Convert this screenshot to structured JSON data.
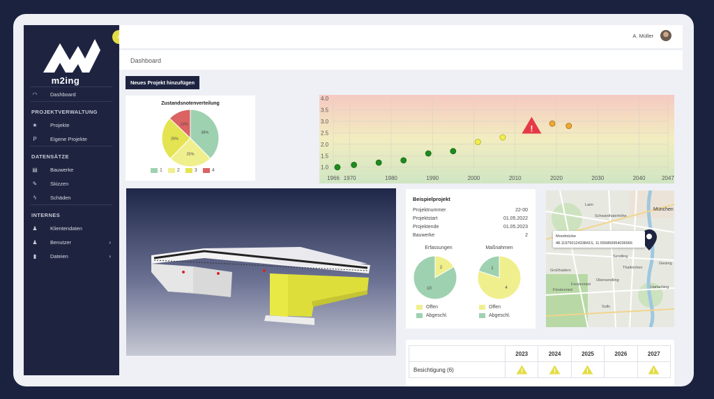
{
  "brand": {
    "name": "m2ing"
  },
  "sidebar": {
    "dashboard": {
      "label": "Dashboard",
      "icon": "dashboard-icon"
    },
    "sections": [
      {
        "title": "PROJEKTVERWALTUNG",
        "items": [
          {
            "label": "Projekte",
            "icon": "star-icon"
          },
          {
            "label": "Eigene Projekte",
            "icon": "p-icon"
          }
        ]
      },
      {
        "title": "DATENSÄTZE",
        "items": [
          {
            "label": "Bauwerke",
            "icon": "building-icon"
          },
          {
            "label": "Skizzen",
            "icon": "edit-icon"
          },
          {
            "label": "Schäden",
            "icon": "bolt-icon"
          }
        ]
      },
      {
        "title": "INTERNES",
        "items": [
          {
            "label": "Klientendaten",
            "icon": "person-icon"
          },
          {
            "label": "Benutzer",
            "icon": "person-icon",
            "expandable": true
          },
          {
            "label": "Dateien",
            "icon": "file-icon",
            "expandable": true
          }
        ]
      }
    ]
  },
  "header": {
    "user": "A. Müller"
  },
  "page": {
    "title": "Dashboard"
  },
  "actions": {
    "add_project": "Neues Projekt hinzufügen"
  },
  "colors": {
    "grade1": "#9ed1b0",
    "grade2": "#f0ef8e",
    "grade3": "#e4e453",
    "grade4": "#db6363",
    "navy": "#1e2440",
    "accent": "#e3dd45"
  },
  "chart_data": [
    {
      "type": "pie",
      "title": "Zustandsnotenverteilung",
      "categories": [
        "1",
        "2",
        "3",
        "4"
      ],
      "values": [
        38,
        25,
        25,
        13
      ],
      "labels": [
        "38%",
        "25%",
        "25%",
        "13%"
      ]
    },
    {
      "type": "scatter",
      "x_ticks": [
        1966,
        1970,
        1980,
        1990,
        2000,
        2010,
        2020,
        2030,
        2040,
        2047
      ],
      "y_ticks": [
        "1.0",
        "1.5",
        "2.0",
        "2.5",
        "3.0",
        "3.5",
        "4.0"
      ],
      "xlim": [
        1966,
        2047
      ],
      "ylim": [
        0.9,
        4.0
      ],
      "points": [
        {
          "x": 1967,
          "y": 1.0,
          "grade": 1
        },
        {
          "x": 1971,
          "y": 1.1,
          "grade": 1
        },
        {
          "x": 1977,
          "y": 1.2,
          "grade": 1
        },
        {
          "x": 1983,
          "y": 1.3,
          "grade": 1
        },
        {
          "x": 1989,
          "y": 1.6,
          "grade": 1
        },
        {
          "x": 1995,
          "y": 1.7,
          "grade": 1
        },
        {
          "x": 2001,
          "y": 2.1,
          "grade": 2
        },
        {
          "x": 2007,
          "y": 2.3,
          "grade": 2
        },
        {
          "x": 2019,
          "y": 2.9,
          "grade": 3
        },
        {
          "x": 2023,
          "y": 2.8,
          "grade": 3
        }
      ],
      "warning": {
        "x": 2014,
        "y": 2.8
      }
    },
    {
      "type": "pie",
      "title": "Erfassungen",
      "categories": [
        "Offen",
        "Abgeschl."
      ],
      "values": [
        2,
        10
      ],
      "labels": [
        "2",
        "10"
      ]
    },
    {
      "type": "pie",
      "title": "Maßnahmen",
      "categories": [
        "Offen",
        "Abgeschl."
      ],
      "values": [
        4,
        1
      ],
      "labels": [
        "4",
        "1"
      ]
    }
  ],
  "project": {
    "title": "Beispielprojekt",
    "rows": [
      {
        "label": "Projektnummer",
        "value": "22-00"
      },
      {
        "label": "Projektstart",
        "value": "01.05.2022"
      },
      {
        "label": "Projektende",
        "value": "01.05.2023"
      },
      {
        "label": "Bauwerke",
        "value": "2"
      }
    ],
    "legend": {
      "open": "Offen",
      "closed": "Abgeschl."
    }
  },
  "map": {
    "popup_title": "Moorbrücke",
    "popup_coords": "48.11975012433841S, 11.555856954036566",
    "labels": [
      "Laim",
      "München",
      "Schwanthalerhöhe",
      "Sendling",
      "Forstenried",
      "Obersendling",
      "Thalkirchen",
      "Fürstenried",
      "Solln",
      "Großhadern",
      "Harlaching",
      "Giesing"
    ]
  },
  "schedule": {
    "years": [
      "2023",
      "2024",
      "2025",
      "2026",
      "2027"
    ],
    "rows": [
      {
        "label": "Besichtigung (6)",
        "marks": [
          true,
          true,
          true,
          false,
          true
        ]
      }
    ]
  }
}
